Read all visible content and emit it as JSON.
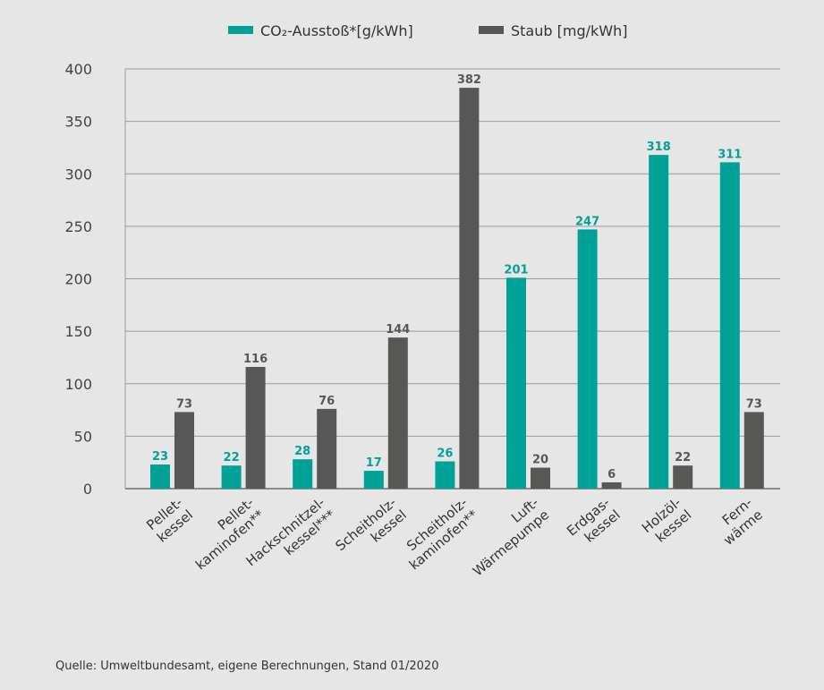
{
  "chart_data": {
    "type": "bar",
    "categories": [
      [
        "Pellet-",
        "kessel"
      ],
      [
        "Pellet-",
        "kaminofen**"
      ],
      [
        "Hackschnitzel-",
        "kessel***"
      ],
      [
        "Scheitholz-",
        "kessel"
      ],
      [
        "Scheitholz-",
        "kaminofen**"
      ],
      [
        "Luft-",
        "Wärmepumpe"
      ],
      [
        "Erdgas-",
        "kessel"
      ],
      [
        "Holzöl-",
        "kessel"
      ],
      [
        "Fern-",
        "wärme"
      ]
    ],
    "series": [
      {
        "name": "CO₂-Ausstoß*[g/kWh]",
        "color": "#00a196",
        "values": [
          23,
          22,
          28,
          17,
          26,
          201,
          247,
          318,
          311
        ]
      },
      {
        "name": "Staub [mg/kWh]",
        "color": "#575756",
        "values": [
          73,
          116,
          76,
          144,
          382,
          20,
          6,
          22,
          73
        ]
      }
    ],
    "ylim": [
      0,
      400
    ],
    "yticks": [
      0,
      50,
      100,
      150,
      200,
      250,
      300,
      350,
      400
    ],
    "grid": true,
    "legend": "top"
  },
  "source": "Quelle: Umweltbundesamt, eigene Berechnungen, Stand 01/2020"
}
